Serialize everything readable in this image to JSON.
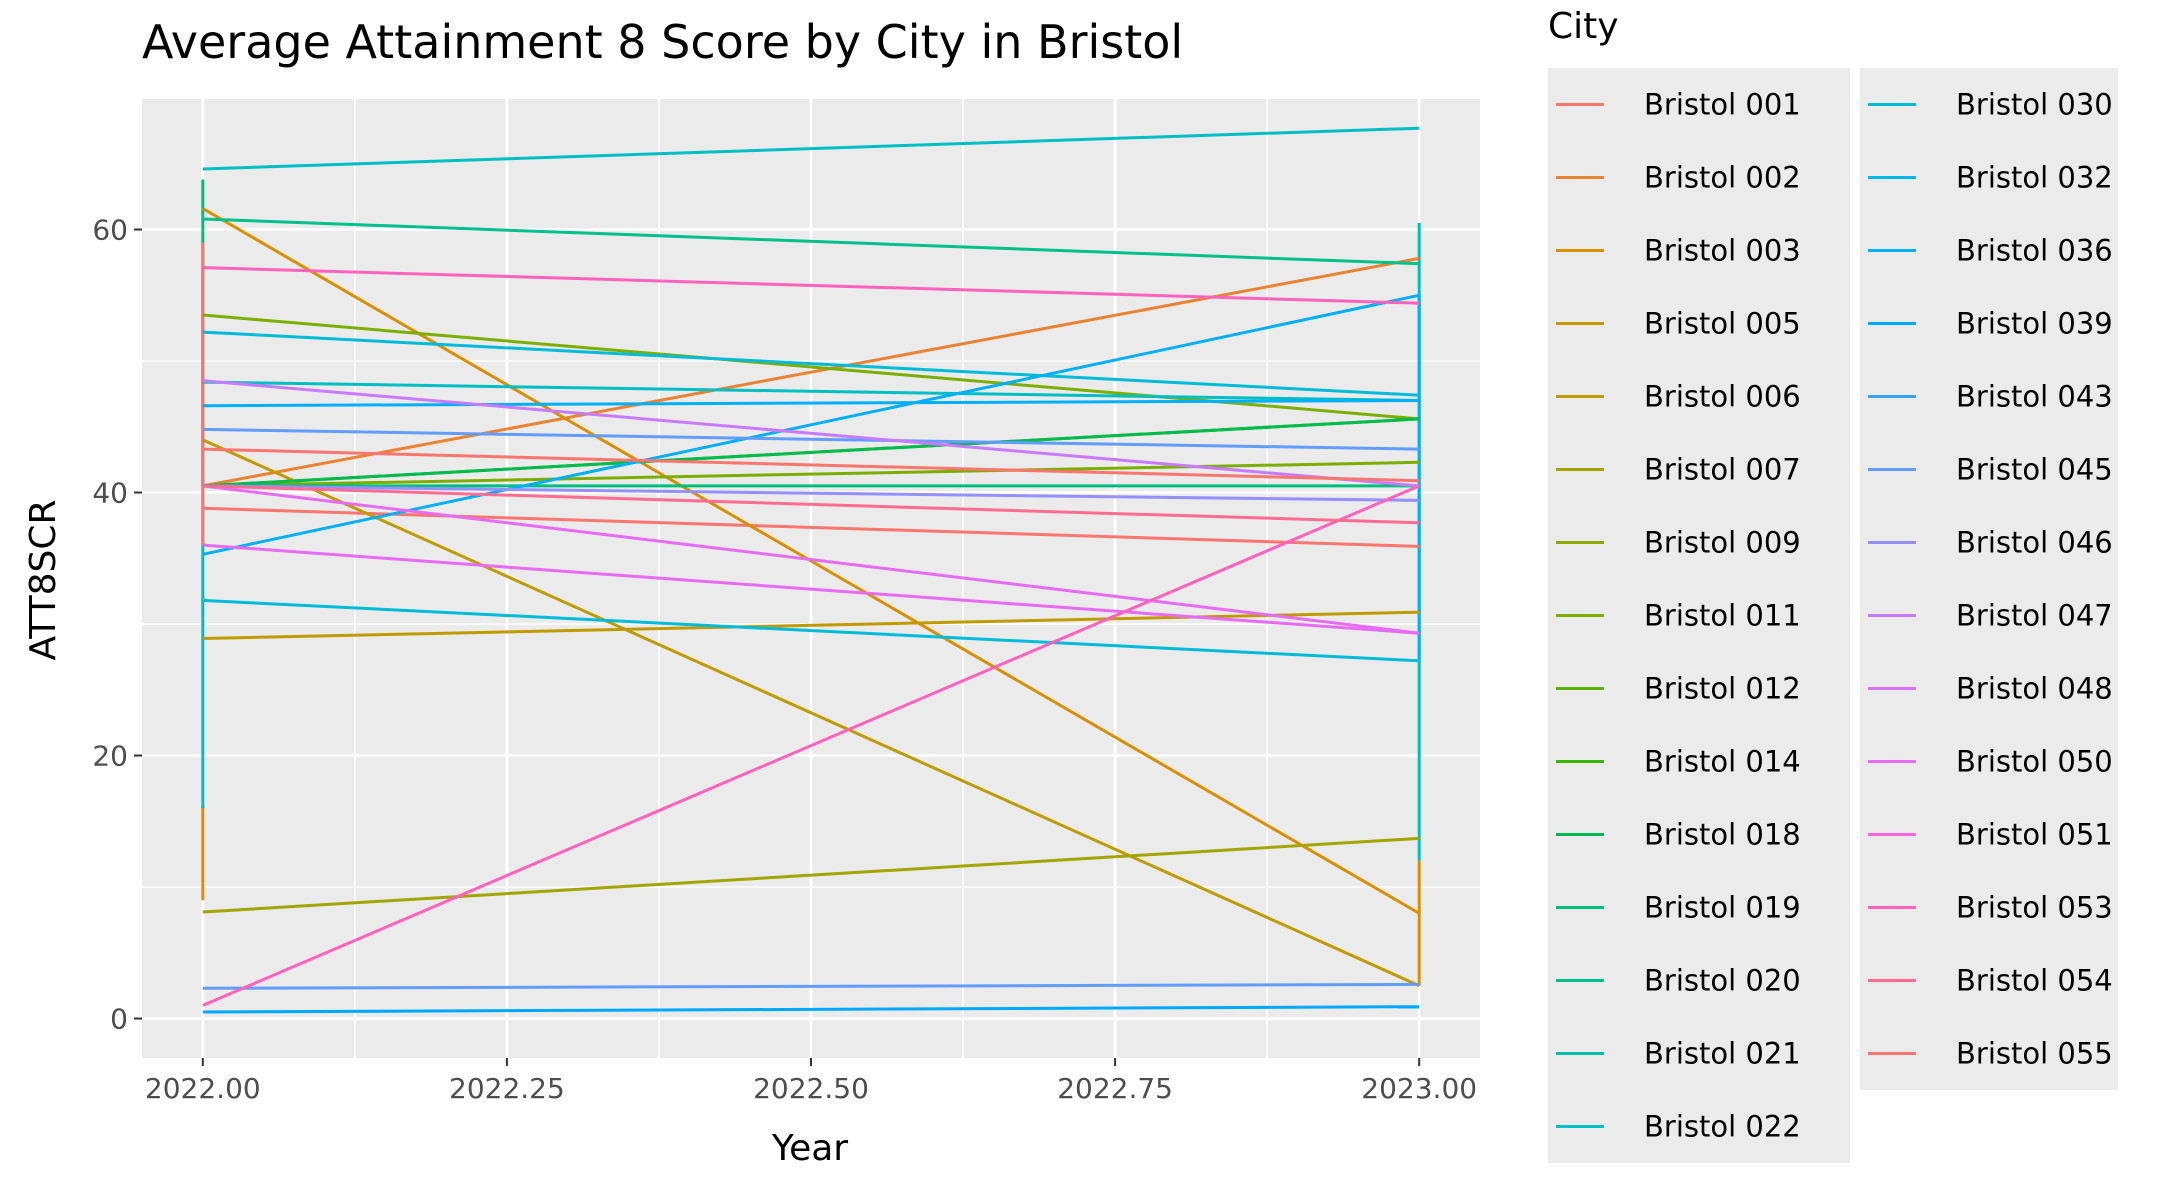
{
  "chart_data": {
    "type": "line",
    "title": "Average Attainment 8 Score by City in Bristol",
    "xlabel": "Year",
    "ylabel": "ATT8SCR",
    "xlim": [
      2021.95,
      2023.05
    ],
    "ylim": [
      -3,
      70
    ],
    "x_ticks": [
      "2022.00",
      "2022.25",
      "2022.50",
      "2022.75",
      "2023.00"
    ],
    "y_ticks": [
      "0",
      "20",
      "40",
      "60"
    ],
    "grid": true,
    "legend_title": "City",
    "legend_position": "right",
    "x": [
      2022,
      2023
    ],
    "series": [
      {
        "name": "Bristol 001",
        "color": "#F8766D",
        "values": [
          38.8,
          35.9
        ]
      },
      {
        "name": "Bristol 002",
        "color": "#EA8331",
        "values": [
          40.5,
          57.8
        ]
      },
      {
        "name": "Bristol 003",
        "color": "#D89000",
        "values": [
          61.6,
          8.0
        ]
      },
      {
        "name": "Bristol 005",
        "color": "#C09B00",
        "values": [
          44.0,
          2.5
        ]
      },
      {
        "name": "Bristol 006",
        "color": "#C09B00",
        "values": [
          28.9,
          30.9
        ]
      },
      {
        "name": "Bristol 007",
        "color": "#A3A500",
        "values": [
          8.1,
          13.7
        ]
      },
      {
        "name": "Bristol 009",
        "color": "#7CAE00",
        "values": [
          40.5,
          42.3
        ]
      },
      {
        "name": "Bristol 011",
        "color": "#7CAE00",
        "values": [
          53.5,
          45.6
        ]
      },
      {
        "name": "Bristol 012",
        "color": "#39B600",
        "values": [
          40.5,
          45.6
        ]
      },
      {
        "name": "Bristol 014",
        "color": "#00BB4E",
        "values": [
          40.5,
          45.6
        ]
      },
      {
        "name": "Bristol 018",
        "color": "#00BF7D",
        "values": [
          40.5,
          40.5
        ]
      },
      {
        "name": "Bristol 019",
        "color": "#00BFC4",
        "values": [
          64.6,
          67.7
        ]
      },
      {
        "name": "Bristol 020",
        "color": "#00C08B",
        "values": [
          60.8,
          57.4
        ]
      },
      {
        "name": "Bristol 021",
        "color": "#00BFC4",
        "values": [
          48.4,
          47.0
        ]
      },
      {
        "name": "Bristol 022",
        "color": "#00BCD8",
        "values": [
          52.2,
          47.4
        ]
      },
      {
        "name": "Bristol 030",
        "color": "#00BCD8",
        "values": [
          31.8,
          27.2
        ]
      },
      {
        "name": "Bristol 032",
        "color": "#00B0F6",
        "values": [
          35.3,
          55.0
        ]
      },
      {
        "name": "Bristol 036",
        "color": "#00A9FF",
        "values": [
          0.5,
          0.9
        ]
      },
      {
        "name": "Bristol 039",
        "color": "#00B0F6",
        "values": [
          46.6,
          47.0
        ]
      },
      {
        "name": "Bristol 043",
        "color": "#619CFF",
        "values": [
          44.8,
          43.3
        ]
      },
      {
        "name": "Bristol 045",
        "color": "#619CFF",
        "values": [
          2.3,
          2.6
        ]
      },
      {
        "name": "Bristol 046",
        "color": "#9590FF",
        "values": [
          40.5,
          39.4
        ]
      },
      {
        "name": "Bristol 047",
        "color": "#C77CFF",
        "values": [
          48.5,
          40.5
        ]
      },
      {
        "name": "Bristol 048",
        "color": "#E76BF3",
        "values": [
          36.0,
          29.3
        ]
      },
      {
        "name": "Bristol 050",
        "color": "#E76BF3",
        "values": [
          40.5,
          29.3
        ]
      },
      {
        "name": "Bristol 051",
        "color": "#FF62BC",
        "values": [
          1.0,
          40.5
        ]
      },
      {
        "name": "Bristol 053",
        "color": "#FF62BC",
        "values": [
          57.1,
          54.4
        ]
      },
      {
        "name": "Bristol 054",
        "color": "#FF6C91",
        "values": [
          40.5,
          37.7
        ]
      },
      {
        "name": "Bristol 055",
        "color": "#F8766D",
        "values": [
          43.3,
          40.9
        ]
      }
    ],
    "legend_columns": [
      [
        {
          "name": "Bristol 001",
          "color": "#F8766D"
        },
        {
          "name": "Bristol 002",
          "color": "#EA8331"
        },
        {
          "name": "Bristol 003",
          "color": "#D89000"
        },
        {
          "name": "Bristol 005",
          "color": "#C99800"
        },
        {
          "name": "Bristol 006",
          "color": "#C09B00"
        },
        {
          "name": "Bristol 007",
          "color": "#A3A500"
        },
        {
          "name": "Bristol 009",
          "color": "#8FAA00"
        },
        {
          "name": "Bristol 011",
          "color": "#7CAE00"
        },
        {
          "name": "Bristol 012",
          "color": "#5BB300"
        },
        {
          "name": "Bristol 014",
          "color": "#39B600"
        },
        {
          "name": "Bristol 018",
          "color": "#00BB4E"
        },
        {
          "name": "Bristol 019",
          "color": "#00BF7D"
        },
        {
          "name": "Bristol 020",
          "color": "#00C08B"
        },
        {
          "name": "Bristol 021",
          "color": "#00BFA8"
        },
        {
          "name": "Bristol 022",
          "color": "#00BFC4"
        }
      ],
      [
        {
          "name": "Bristol 030",
          "color": "#00BCD8"
        },
        {
          "name": "Bristol 032",
          "color": "#00B6EB"
        },
        {
          "name": "Bristol 036",
          "color": "#00B0F6"
        },
        {
          "name": "Bristol 039",
          "color": "#00A9FF"
        },
        {
          "name": "Bristol 043",
          "color": "#35A2FF"
        },
        {
          "name": "Bristol 045",
          "color": "#619CFF"
        },
        {
          "name": "Bristol 046",
          "color": "#9590FF"
        },
        {
          "name": "Bristol 047",
          "color": "#C77CFF"
        },
        {
          "name": "Bristol 048",
          "color": "#DB72FB"
        },
        {
          "name": "Bristol 050",
          "color": "#E76BF3"
        },
        {
          "name": "Bristol 051",
          "color": "#F763E0"
        },
        {
          "name": "Bristol 053",
          "color": "#FF62BC"
        },
        {
          "name": "Bristol 054",
          "color": "#FF6C91"
        },
        {
          "name": "Bristol 055",
          "color": "#F8766D"
        }
      ]
    ],
    "vertical_segments": [
      {
        "x": 2022,
        "color": "#00BF7D",
        "ymin": 40.5,
        "ymax": 63.8
      },
      {
        "x": 2022,
        "color": "#D89000",
        "ymin": 9.0,
        "ymax": 16.2
      },
      {
        "x": 2022,
        "color": "#00BFC4",
        "ymin": 16.0,
        "ymax": 57.0
      },
      {
        "x": 2022,
        "color": "#F8766D",
        "ymin": 36.0,
        "ymax": 59.0
      },
      {
        "x": 2023,
        "color": "#00BFC4",
        "ymin": 12.0,
        "ymax": 60.5
      },
      {
        "x": 2023,
        "color": "#D89000",
        "ymin": 2.5,
        "ymax": 12.0
      },
      {
        "x": 2023,
        "color": "#00B0F6",
        "ymin": 27.2,
        "ymax": 55.0
      }
    ]
  }
}
